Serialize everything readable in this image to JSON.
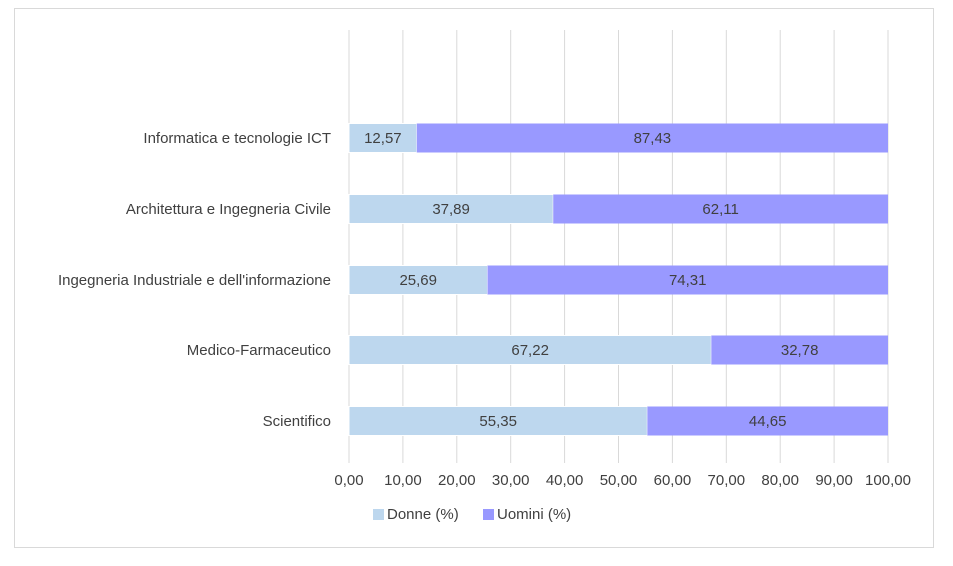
{
  "chart_data": {
    "type": "bar",
    "orientation": "horizontal",
    "stacked": true,
    "categories": [
      "Informatica e tecnologie ICT",
      "Architettura e Ingegneria Civile",
      "Ingegneria Industriale e dell'informazione",
      "Medico-Farmaceutico",
      "Scientifico"
    ],
    "series": [
      {
        "name": "Donne (%)",
        "color": "#bdd7ee",
        "values": [
          12.57,
          37.89,
          25.69,
          67.22,
          55.35
        ],
        "labels": [
          "12,57",
          "37,89",
          "25,69",
          "67,22",
          "55,35"
        ]
      },
      {
        "name": "Uomini (%)",
        "color": "#9999ff",
        "values": [
          87.43,
          62.11,
          74.31,
          32.78,
          44.65
        ],
        "labels": [
          "87,43",
          "62,11",
          "74,31",
          "32,78",
          "44,65"
        ]
      }
    ],
    "xlim": [
      0,
      100
    ],
    "ticks": [
      "0,00",
      "10,00",
      "20,00",
      "30,00",
      "40,00",
      "50,00",
      "60,00",
      "70,00",
      "80,00",
      "90,00",
      "100,00"
    ],
    "grid": true,
    "legend_position": "bottom"
  }
}
